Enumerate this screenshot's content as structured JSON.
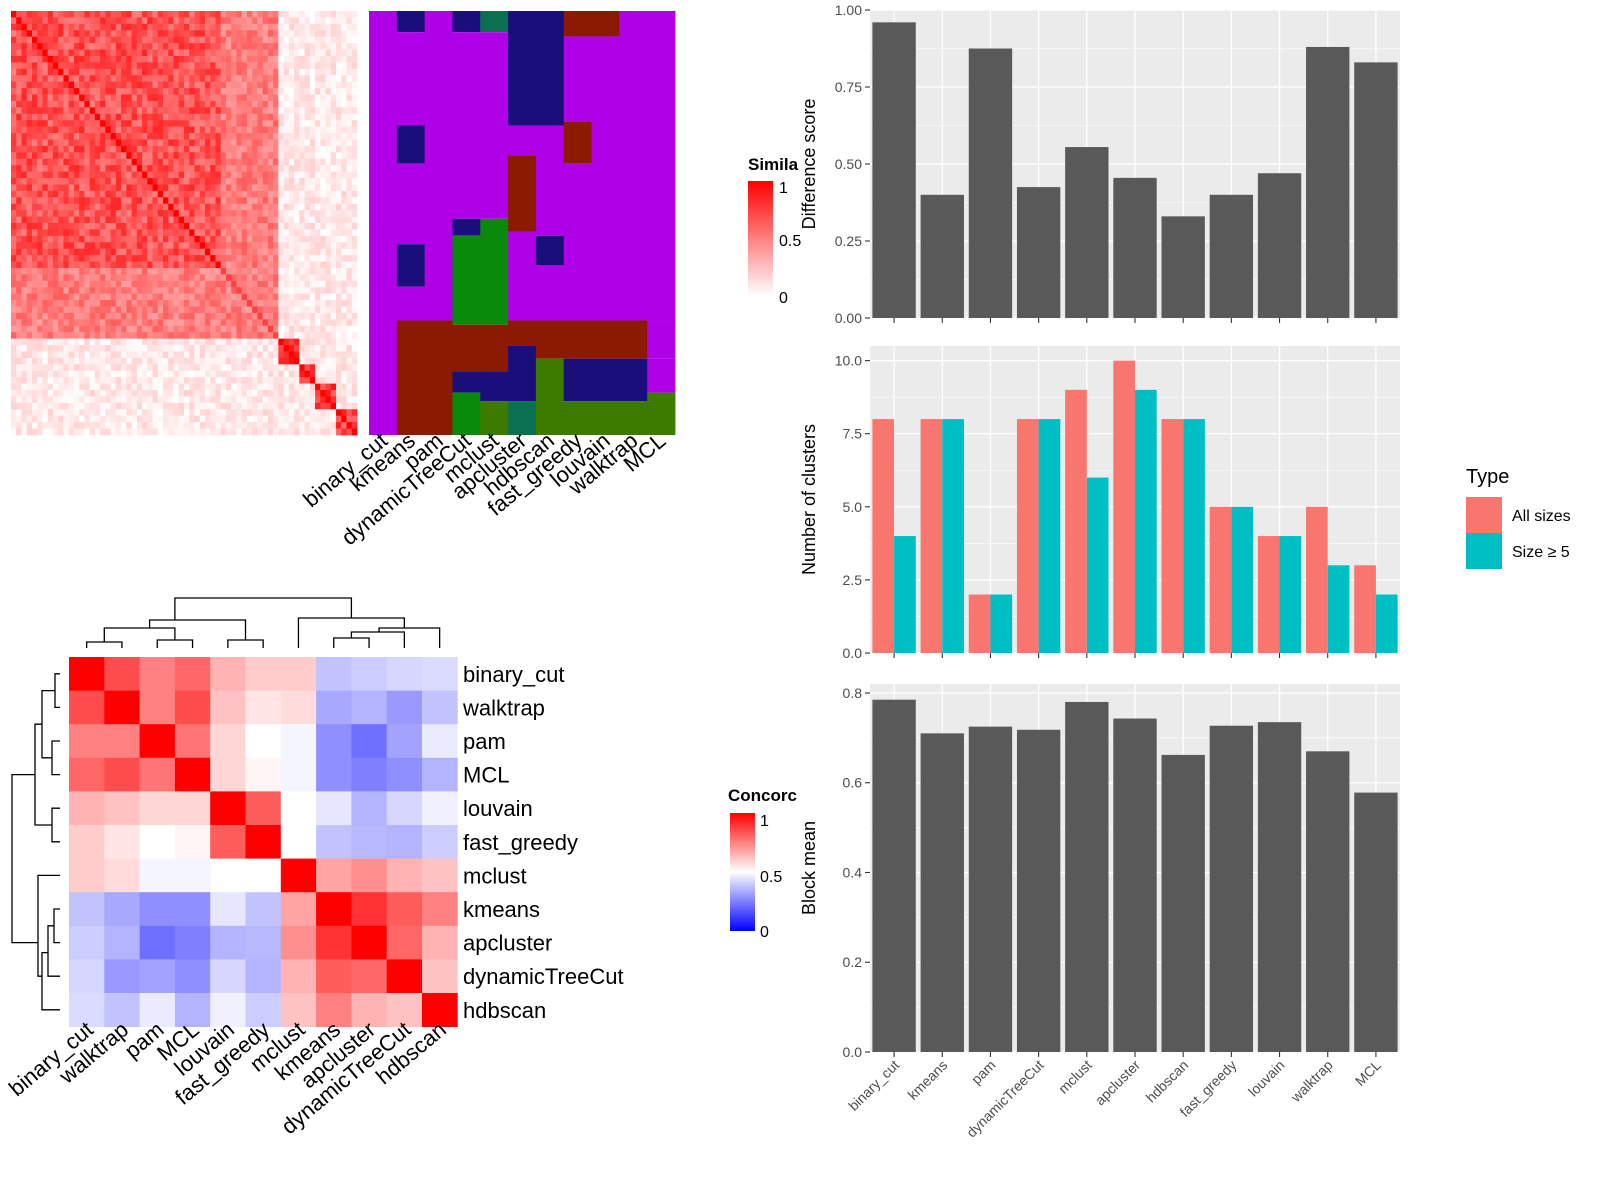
{
  "chart_data": [
    {
      "type": "heatmap",
      "panel": "similarity",
      "legend_title": "Simila",
      "legend_ticks": [
        "1",
        "0.5",
        "0"
      ],
      "method_labels": [
        "binary_cut",
        "kmeans",
        "pam",
        "dynamicTreeCut",
        "mclust",
        "apcluster",
        "hdbscan",
        "fast_greedy",
        "louvain",
        "walktrap",
        "MCL"
      ],
      "colors": {
        "high": "#ff0000",
        "low": "#ffffff",
        "c1": "#1a0f7a",
        "c2": "#0a8a0a",
        "c3": "#8b1a00",
        "c4": "#b000e8",
        "c5": "#3d7a00",
        "c6": "#0a7050",
        "c7": "#0000aa"
      }
    },
    {
      "type": "heatmap",
      "panel": "concordance",
      "legend_title": "Concorc",
      "legend_ticks": [
        "1",
        "0.5",
        "0"
      ],
      "rows": [
        "binary_cut",
        "walktrap",
        "pam",
        "MCL",
        "louvain",
        "fast_greedy",
        "mclust",
        "kmeans",
        "apcluster",
        "dynamicTreeCut",
        "hdbscan"
      ],
      "cols": [
        "binary_cut",
        "walktrap",
        "pam",
        "MCL",
        "louvain",
        "fast_greedy",
        "mclust",
        "kmeans",
        "apcluster",
        "dynamicTreeCut",
        "hdbscan"
      ],
      "values": [
        [
          1.0,
          0.85,
          0.75,
          0.8,
          0.65,
          0.6,
          0.6,
          0.38,
          0.4,
          0.42,
          0.43
        ],
        [
          0.85,
          1.0,
          0.75,
          0.85,
          0.62,
          0.55,
          0.57,
          0.33,
          0.35,
          0.3,
          0.38
        ],
        [
          0.75,
          0.75,
          1.0,
          0.77,
          0.58,
          0.5,
          0.48,
          0.28,
          0.22,
          0.32,
          0.46
        ],
        [
          0.8,
          0.85,
          0.77,
          1.0,
          0.58,
          0.52,
          0.48,
          0.28,
          0.25,
          0.28,
          0.35
        ],
        [
          0.65,
          0.62,
          0.58,
          0.58,
          1.0,
          0.82,
          0.5,
          0.45,
          0.35,
          0.42,
          0.47
        ],
        [
          0.6,
          0.55,
          0.5,
          0.52,
          0.82,
          1.0,
          0.5,
          0.38,
          0.36,
          0.35,
          0.4
        ],
        [
          0.6,
          0.57,
          0.48,
          0.48,
          0.5,
          0.5,
          1.0,
          0.68,
          0.72,
          0.65,
          0.62
        ],
        [
          0.38,
          0.33,
          0.28,
          0.28,
          0.45,
          0.38,
          0.68,
          1.0,
          0.9,
          0.82,
          0.75
        ],
        [
          0.4,
          0.35,
          0.22,
          0.25,
          0.35,
          0.36,
          0.72,
          0.9,
          1.0,
          0.8,
          0.65
        ],
        [
          0.42,
          0.3,
          0.32,
          0.28,
          0.42,
          0.35,
          0.65,
          0.82,
          0.8,
          1.0,
          0.62
        ],
        [
          0.43,
          0.38,
          0.46,
          0.35,
          0.47,
          0.4,
          0.62,
          0.75,
          0.65,
          0.62,
          1.0
        ]
      ],
      "colors": {
        "high": "#ff0000",
        "mid": "#ffffff",
        "low": "#0000ff"
      }
    },
    {
      "type": "bar",
      "panel": "difference",
      "categories": [
        "binary_cut",
        "kmeans",
        "pam",
        "dynamicTreeCut",
        "mclust",
        "apcluster",
        "hdbscan",
        "fast_greedy",
        "louvain",
        "walktrap",
        "MCL"
      ],
      "values": [
        0.96,
        0.4,
        0.875,
        0.425,
        0.555,
        0.455,
        0.33,
        0.4,
        0.47,
        0.88,
        0.83
      ],
      "ylabel": "Difference score",
      "ylim": [
        0,
        1.0
      ],
      "yticks": [
        "0.00",
        "0.25",
        "0.50",
        "0.75",
        "1.00"
      ],
      "bar_color": "#595959"
    },
    {
      "type": "bar",
      "panel": "clusters",
      "categories": [
        "binary_cut",
        "kmeans",
        "pam",
        "dynamicTreeCut",
        "mclust",
        "apcluster",
        "hdbscan",
        "fast_greedy",
        "louvain",
        "walktrap",
        "MCL"
      ],
      "series": [
        {
          "name": "All sizes",
          "values": [
            8,
            8,
            2,
            8,
            9,
            10,
            8,
            5,
            4,
            5,
            3
          ],
          "color": "#f8766d"
        },
        {
          "name": "Size ≥ 5",
          "values": [
            4,
            8,
            2,
            8,
            6,
            9,
            8,
            5,
            4,
            3,
            2
          ],
          "color": "#00bfc4"
        }
      ],
      "ylabel": "Number of clusters",
      "ylim": [
        0,
        10.5
      ],
      "yticks": [
        "0.0",
        "2.5",
        "5.0",
        "7.5",
        "10.0"
      ],
      "legend_title": "Type",
      "legend": "right"
    },
    {
      "type": "bar",
      "panel": "blockmean",
      "categories": [
        "binary_cut",
        "kmeans",
        "pam",
        "dynamicTreeCut",
        "mclust",
        "apcluster",
        "hdbscan",
        "fast_greedy",
        "louvain",
        "walktrap",
        "MCL"
      ],
      "values": [
        0.785,
        0.71,
        0.725,
        0.718,
        0.78,
        0.743,
        0.662,
        0.727,
        0.735,
        0.67,
        0.578
      ],
      "ylabel": "Block mean",
      "ylim": [
        0,
        0.82
      ],
      "yticks": [
        "0.0",
        "0.2",
        "0.4",
        "0.6",
        "0.8"
      ],
      "bar_color": "#595959"
    }
  ]
}
